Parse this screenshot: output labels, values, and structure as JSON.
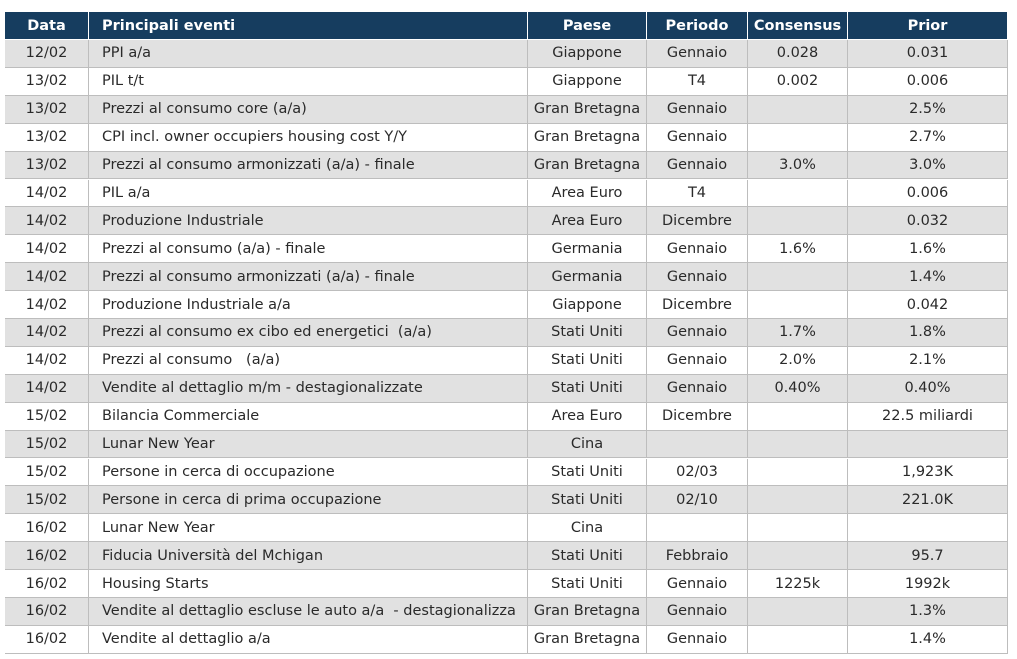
{
  "table": {
    "header": [
      "Data",
      "Principali eventi",
      "Paese",
      "Periodo",
      "Consensus",
      "Prior"
    ],
    "rows": [
      [
        "12/02",
        "PPI a/a",
        "Giappone",
        "Gennaio",
        "0.028",
        "0.031"
      ],
      [
        "13/02",
        "PIL t/t",
        "Giappone",
        "T4",
        "0.002",
        "0.006"
      ],
      [
        "13/02",
        "Prezzi al consumo core (a/a)",
        "Gran Bretagna",
        "Gennaio",
        null,
        "2.5%"
      ],
      [
        "13/02",
        "CPI incl. owner occupiers housing cost Y/Y",
        "Gran Bretagna",
        "Gennaio",
        null,
        "2.7%"
      ],
      [
        "13/02",
        "Prezzi al consumo armonizzati (a/a) - finale",
        "Gran Bretagna",
        "Gennaio",
        "3.0%",
        "3.0%"
      ],
      [
        "14/02",
        "PIL a/a",
        "Area Euro",
        "T4",
        null,
        "0.006"
      ],
      [
        "14/02",
        "Produzione Industriale",
        "Area Euro",
        "Dicembre",
        null,
        "0.032"
      ],
      [
        "14/02",
        "Prezzi al consumo (a/a) - finale",
        "Germania",
        "Gennaio",
        "1.6%",
        "1.6%"
      ],
      [
        "14/02",
        "Prezzi al consumo armonizzati (a/a) - finale",
        "Germania",
        "Gennaio",
        null,
        "1.4%"
      ],
      [
        "14/02",
        "Produzione Industriale a/a",
        "Giappone",
        "Dicembre",
        null,
        "0.042"
      ],
      [
        "14/02",
        "Prezzi al consumo ex cibo ed energetici  (a/a)",
        "Stati Uniti",
        "Gennaio",
        "1.7%",
        "1.8%"
      ],
      [
        "14/02",
        "Prezzi al consumo   (a/a)",
        "Stati Uniti",
        "Gennaio",
        "2.0%",
        "2.1%"
      ],
      [
        "14/02",
        "Vendite al dettaglio m/m - destagionalizzate",
        "Stati Uniti",
        "Gennaio",
        "0.40%",
        "0.40%"
      ],
      [
        "15/02",
        "Bilancia Commerciale",
        "Area Euro",
        "Dicembre",
        null,
        "22.5 miliardi"
      ],
      [
        "15/02",
        "Lunar New Year",
        "Cina",
        null,
        null,
        null
      ],
      [
        "15/02",
        "Persone in cerca di occupazione",
        "Stati Uniti",
        "02/03",
        null,
        "1,923K"
      ],
      [
        "15/02",
        "Persone in cerca di prima occupazione",
        "Stati Uniti",
        "02/10",
        null,
        "221.0K"
      ],
      [
        "16/02",
        "Lunar New Year",
        "Cina",
        null,
        null,
        null
      ],
      [
        "16/02",
        "Fiducia Università del Mchigan",
        "Stati Uniti",
        "Febbraio",
        null,
        "95.7"
      ],
      [
        "16/02",
        "Housing Starts",
        "Stati Uniti",
        "Gennaio",
        "1225k",
        "1992k"
      ],
      [
        "16/02",
        "Vendite al dettaglio escluse le auto a/a  - destagionalizza",
        "Gran Bretagna",
        "Gennaio",
        null,
        "1.3%"
      ],
      [
        "16/02",
        "Vendite al dettaglio a/a",
        "Gran Bretagna",
        "Gennaio",
        null,
        "1.4%"
      ]
    ]
  }
}
